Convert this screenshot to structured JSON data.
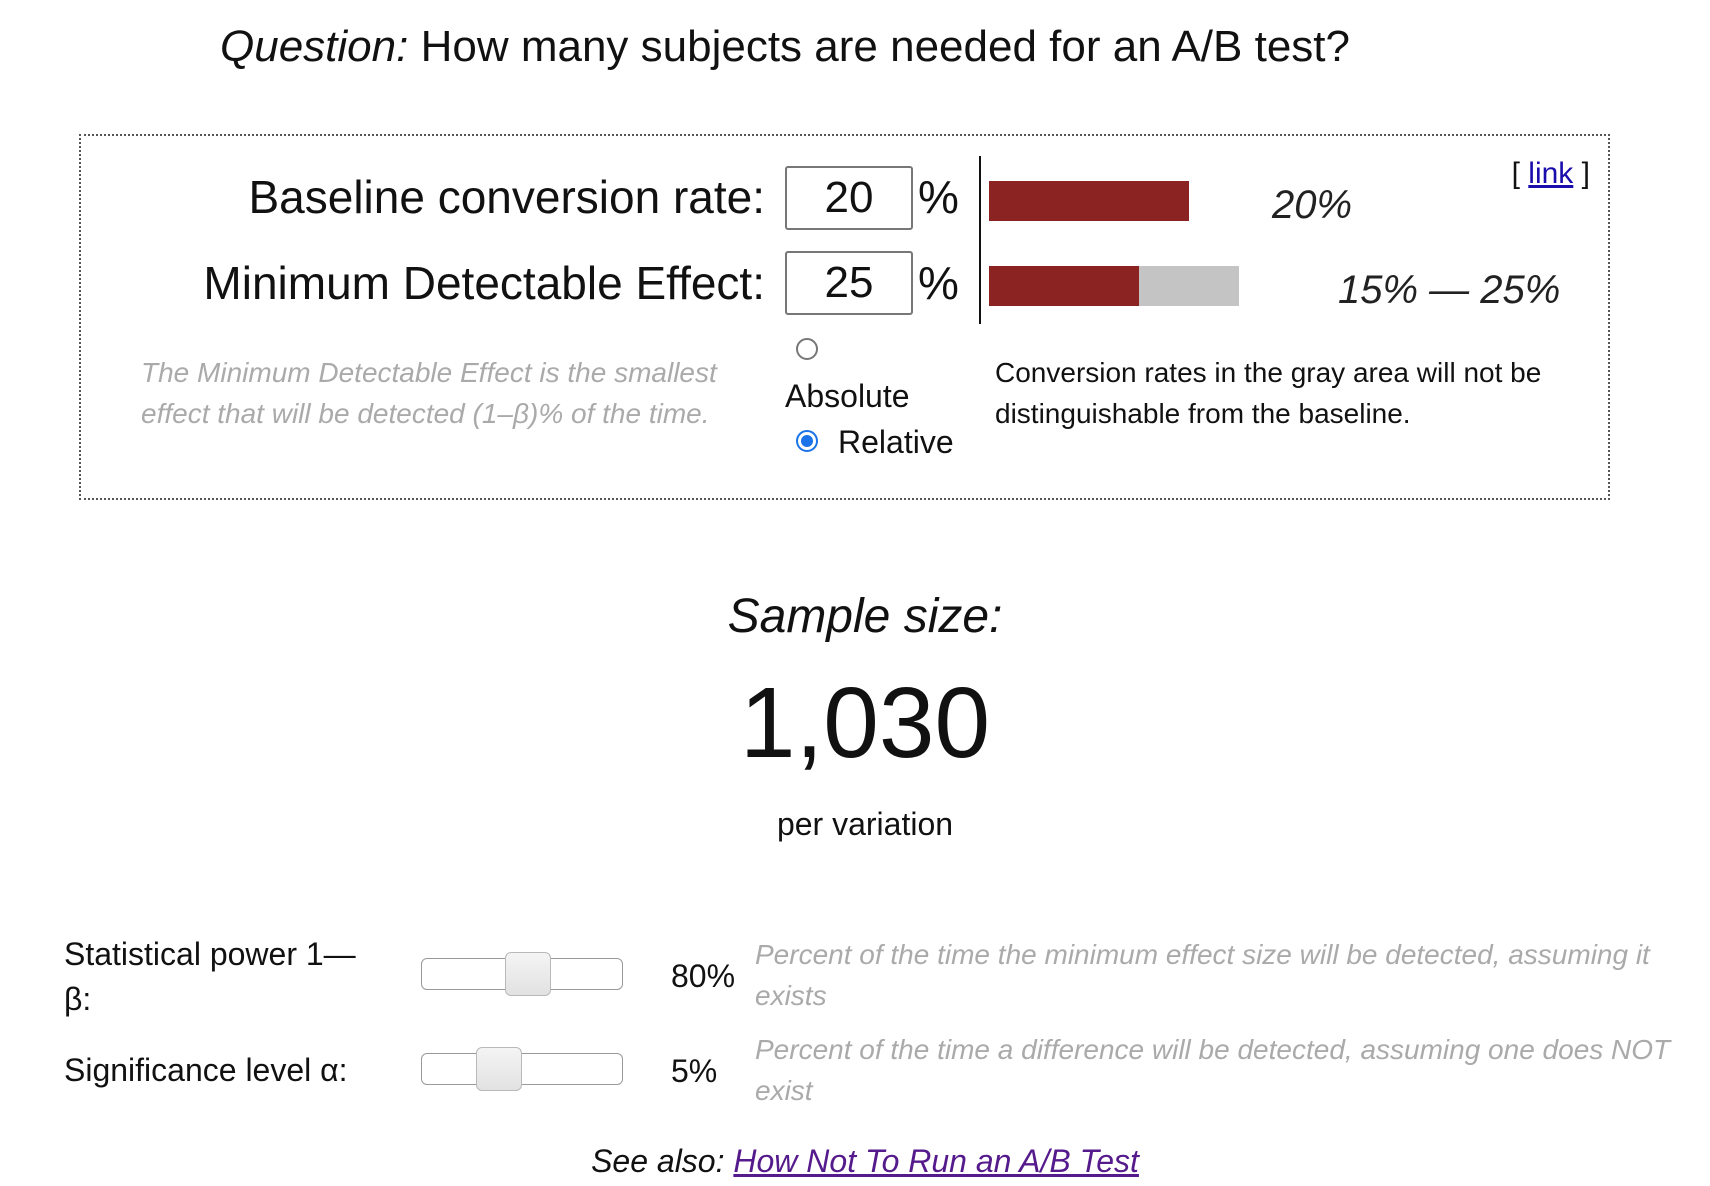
{
  "header": {
    "question_label": "Question:",
    "question_text": "How many subjects are needed for an A/B test?"
  },
  "inputs": {
    "baseline_label": "Baseline conversion rate:",
    "baseline_value": "20",
    "mde_label": "Minimum Detectable Effect:",
    "mde_value": "25",
    "percent_sign": "%"
  },
  "mde_help": "The Minimum Detectable Effect is the smallest effect that will be detected (1–β)% of the time.",
  "mde_mode": {
    "absolute_label": "Absolute",
    "relative_label": "Relative",
    "selected": "Relative"
  },
  "visualization": {
    "baseline_bar_label": "20%",
    "range_bar_label": "15% — 25%",
    "baseline_rate": 0.2,
    "range_low": 0.15,
    "range_high": 0.25,
    "colors": {
      "rate": "#8b2323",
      "indistinguishable": "#c4c4c4"
    },
    "note": "Conversion rates in the gray area will not be distinguishable from the baseline."
  },
  "permalink": {
    "open": "[",
    "link_text": "link",
    "close": "]"
  },
  "result": {
    "heading": "Sample size:",
    "value": "1,030",
    "unit": "per variation"
  },
  "params": {
    "power_label": "Statistical power 1—β:",
    "power_value": "80%",
    "power_fraction": 0.8,
    "power_help": "Percent of the time the minimum effect size will be detected, assuming it exists",
    "significance_label": "Significance level α:",
    "significance_value": "5%",
    "significance_fraction": 0.05,
    "significance_help": "Percent of the time a difference will be detected, assuming one does NOT exist"
  },
  "footer": {
    "see_also_label": "See also:",
    "link_text": "How Not To Run an A/B Test"
  }
}
